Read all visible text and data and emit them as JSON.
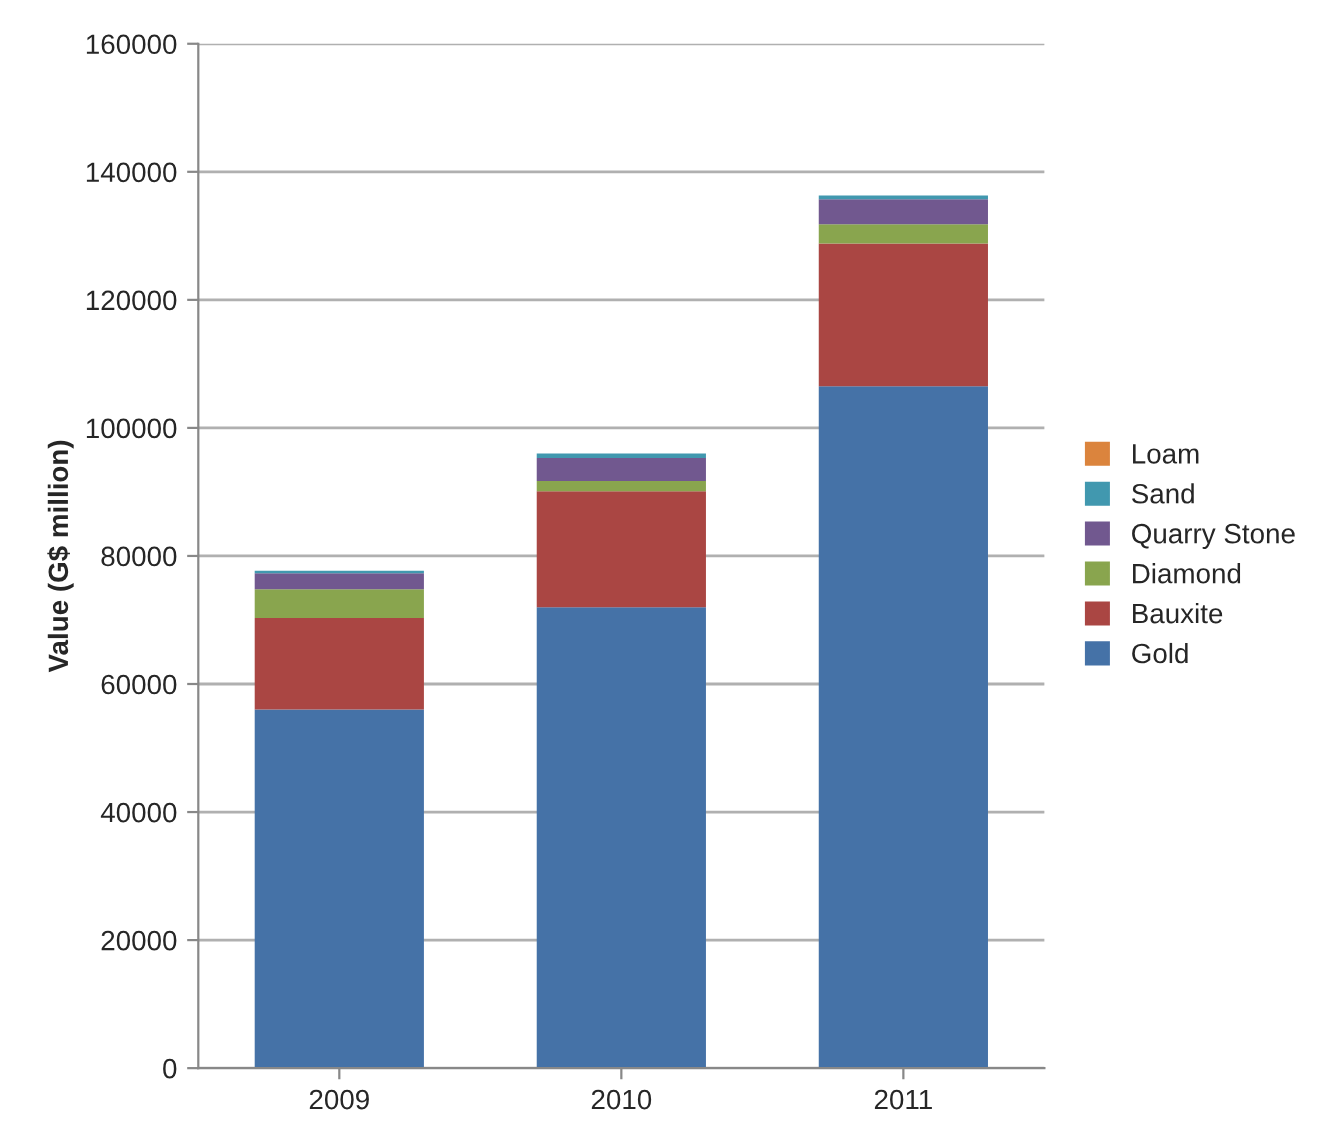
{
  "chart_data": {
    "type": "bar",
    "stacked": true,
    "ylabel": "Value (G$ million)",
    "categories": [
      "2009",
      "2010",
      "2011"
    ],
    "series": [
      {
        "name": "Gold",
        "color": "#4572a7",
        "values": [
          56000,
          72000,
          106500
        ]
      },
      {
        "name": "Bauxite",
        "color": "#aa4643",
        "values": [
          14300,
          18100,
          22300
        ]
      },
      {
        "name": "Diamond",
        "color": "#89a54e",
        "values": [
          4500,
          1600,
          3000
        ]
      },
      {
        "name": "Quarry Stone",
        "color": "#71588f",
        "values": [
          2500,
          3600,
          3900
        ]
      },
      {
        "name": "Sand",
        "color": "#4198af",
        "values": [
          400,
          700,
          600
        ]
      },
      {
        "name": "Loam",
        "color": "#db843d",
        "values": [
          null,
          null,
          null
        ]
      }
    ],
    "ylim": [
      0,
      160000
    ],
    "yticks": [
      0,
      20000,
      40000,
      60000,
      80000,
      100000,
      120000,
      140000,
      160000
    ],
    "grid": "y",
    "legend": "right"
  }
}
